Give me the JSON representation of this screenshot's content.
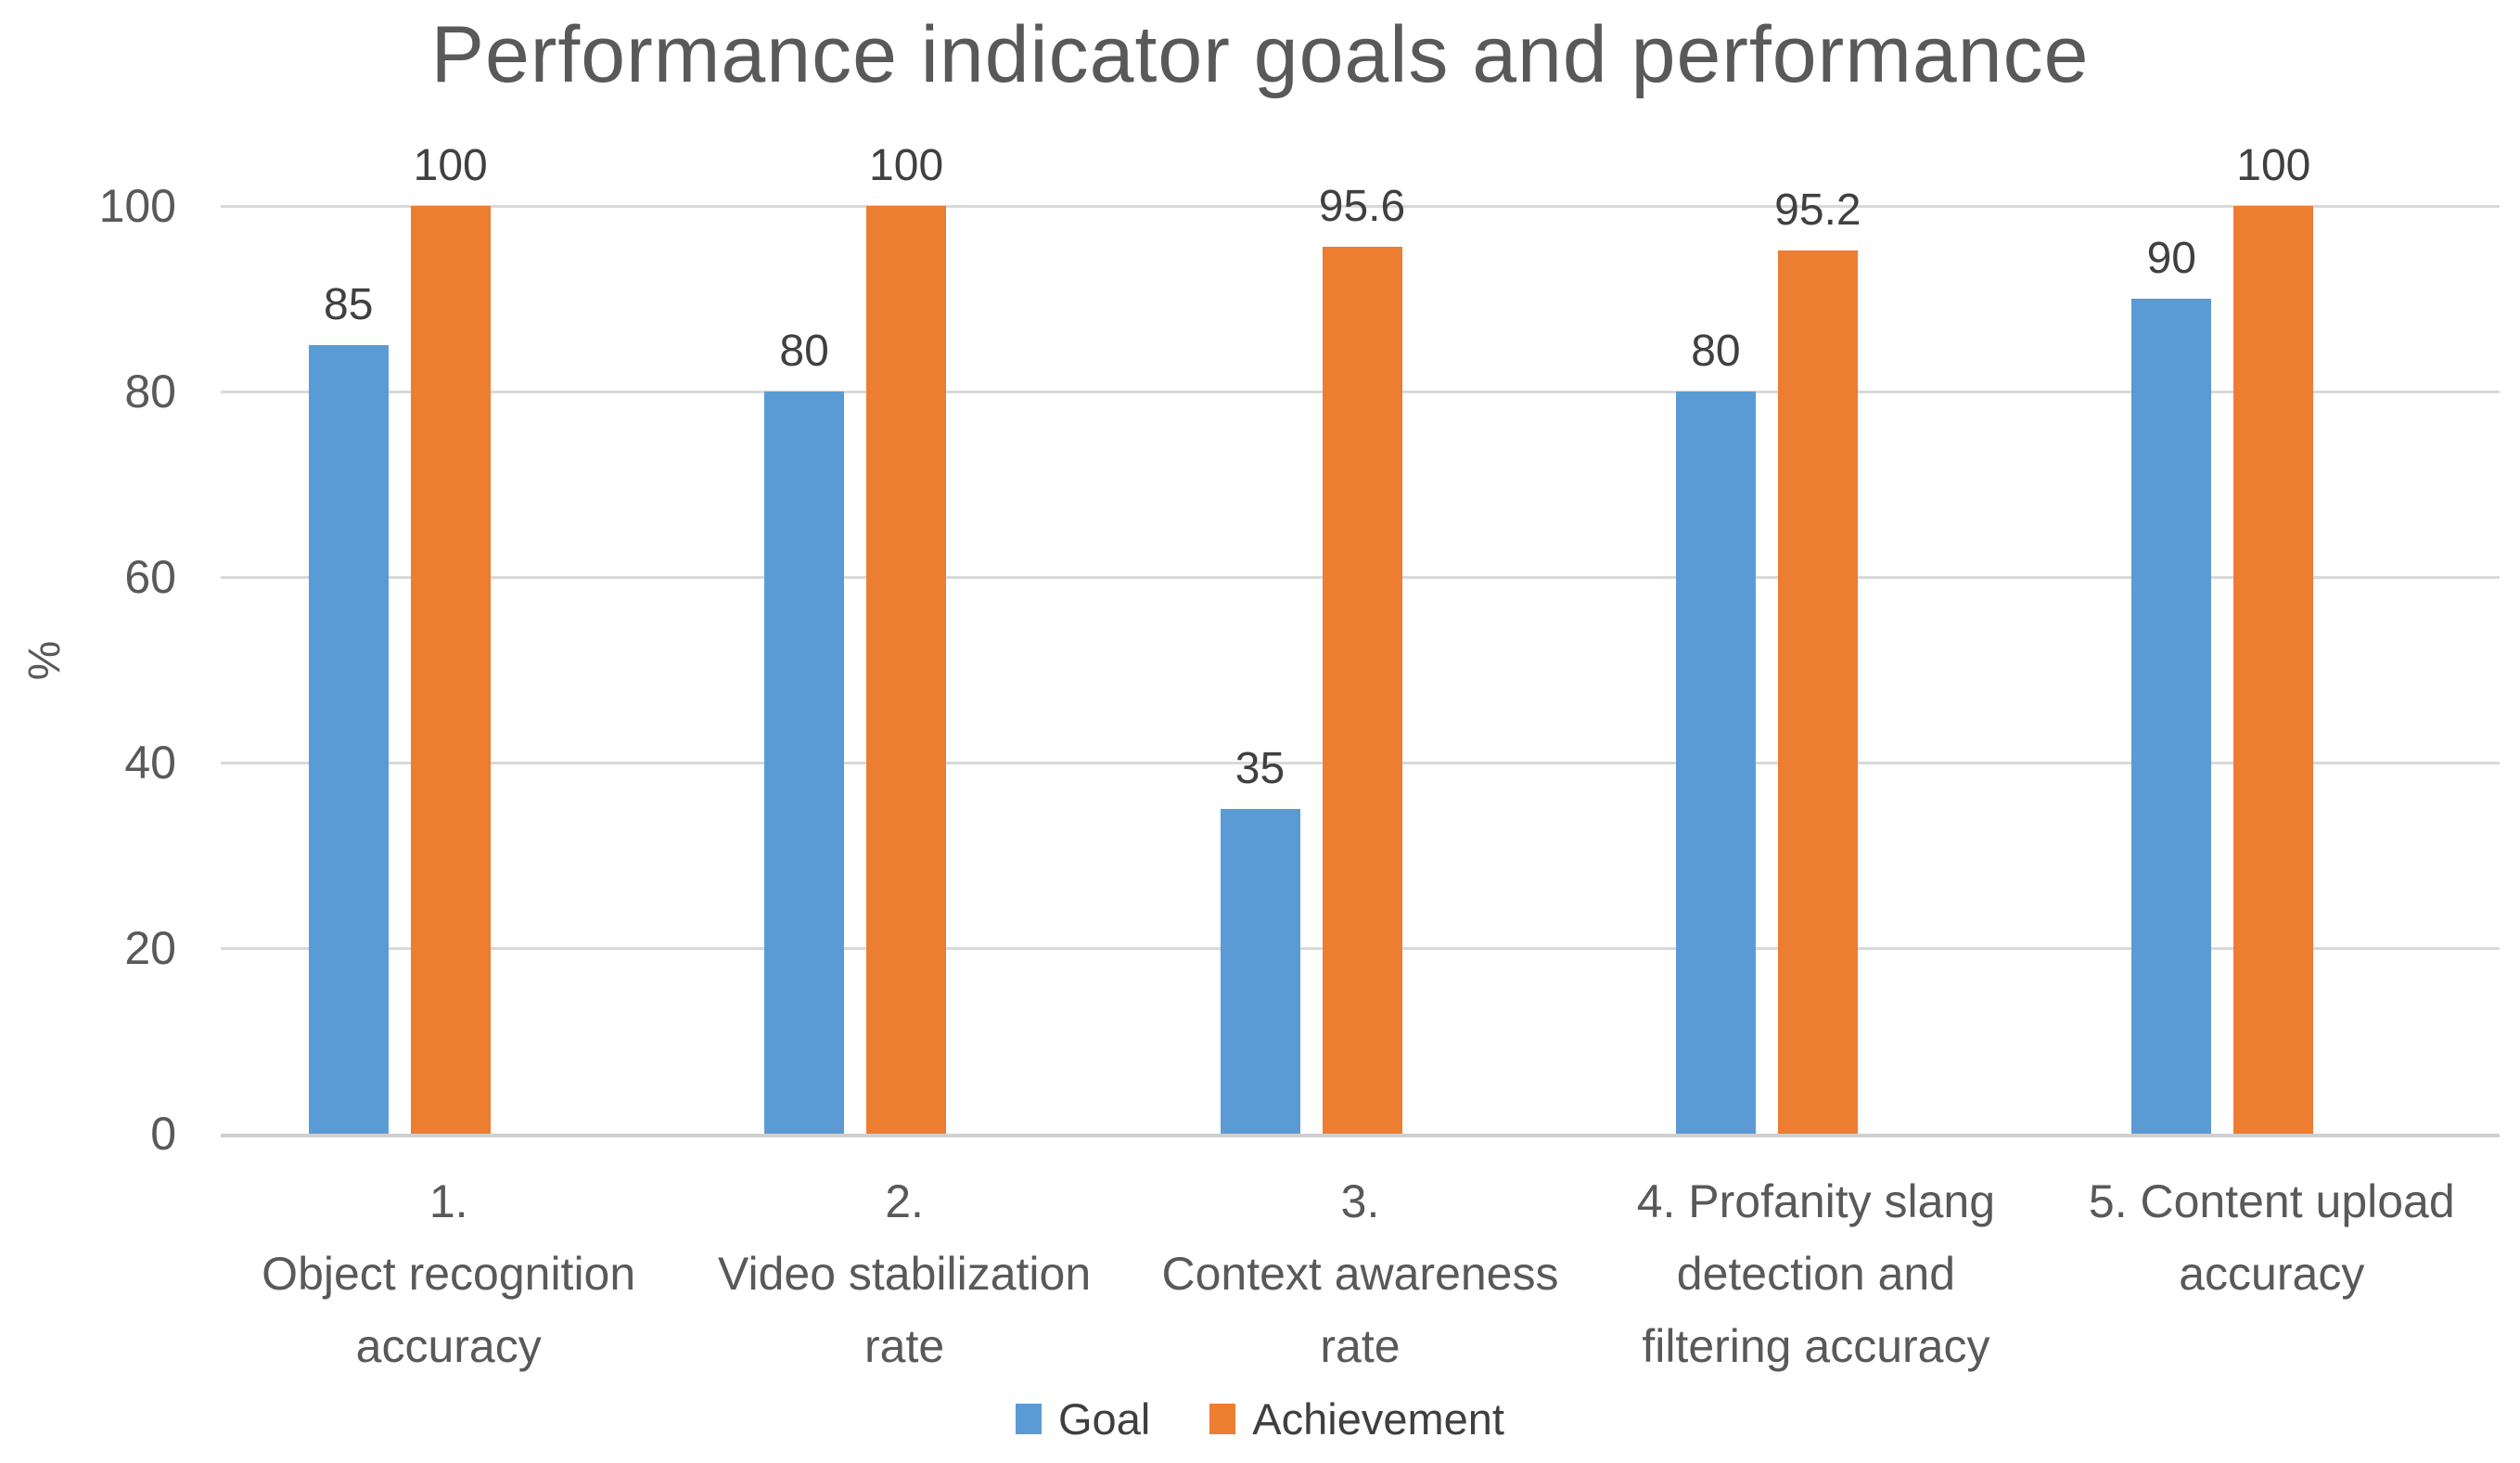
{
  "chart_data": {
    "type": "bar",
    "title": "Performance indicator goals and performance",
    "xlabel": "",
    "ylabel": "%",
    "ylim": [
      0,
      100
    ],
    "yticks": [
      0,
      20,
      40,
      60,
      80,
      100
    ],
    "grid": true,
    "legend_position": "bottom",
    "categories": [
      "1. Object recognition accuracy",
      "2. Video stabilization rate",
      "3. Context awareness rate",
      "4. Profanity slang detection and filtering accuracy",
      "5. Content upload accuracy"
    ],
    "category_label_lines": [
      [
        "1.",
        "Object recognition",
        "accuracy"
      ],
      [
        "2.",
        "Video stabilization",
        "rate"
      ],
      [
        "3.",
        "Context awareness",
        "rate"
      ],
      [
        "4. Profanity slang",
        "detection and",
        "filtering accuracy"
      ],
      [
        "5. Content upload",
        "accuracy"
      ]
    ],
    "series": [
      {
        "name": "Goal",
        "color": "#5B9BD5",
        "values": [
          85,
          80,
          35,
          80,
          90
        ],
        "labels": [
          "85",
          "80",
          "35",
          "80",
          "90"
        ]
      },
      {
        "name": "Achievement",
        "color": "#ED7D31",
        "values": [
          100,
          100,
          95.6,
          95.2,
          100
        ],
        "labels": [
          "100",
          "100",
          "95.6",
          "95.2",
          "100"
        ]
      }
    ]
  },
  "colors": {
    "background": "#FFFFFF",
    "title_text": "#595959",
    "axis_text": "#595959",
    "data_label_text": "#404040",
    "legend_text": "#3F3F3F",
    "gridline": "#D9D9D9",
    "axis_line": "#CFCFCF",
    "goal_series": "#5B9BD5",
    "achievement_series": "#ED7D31"
  }
}
